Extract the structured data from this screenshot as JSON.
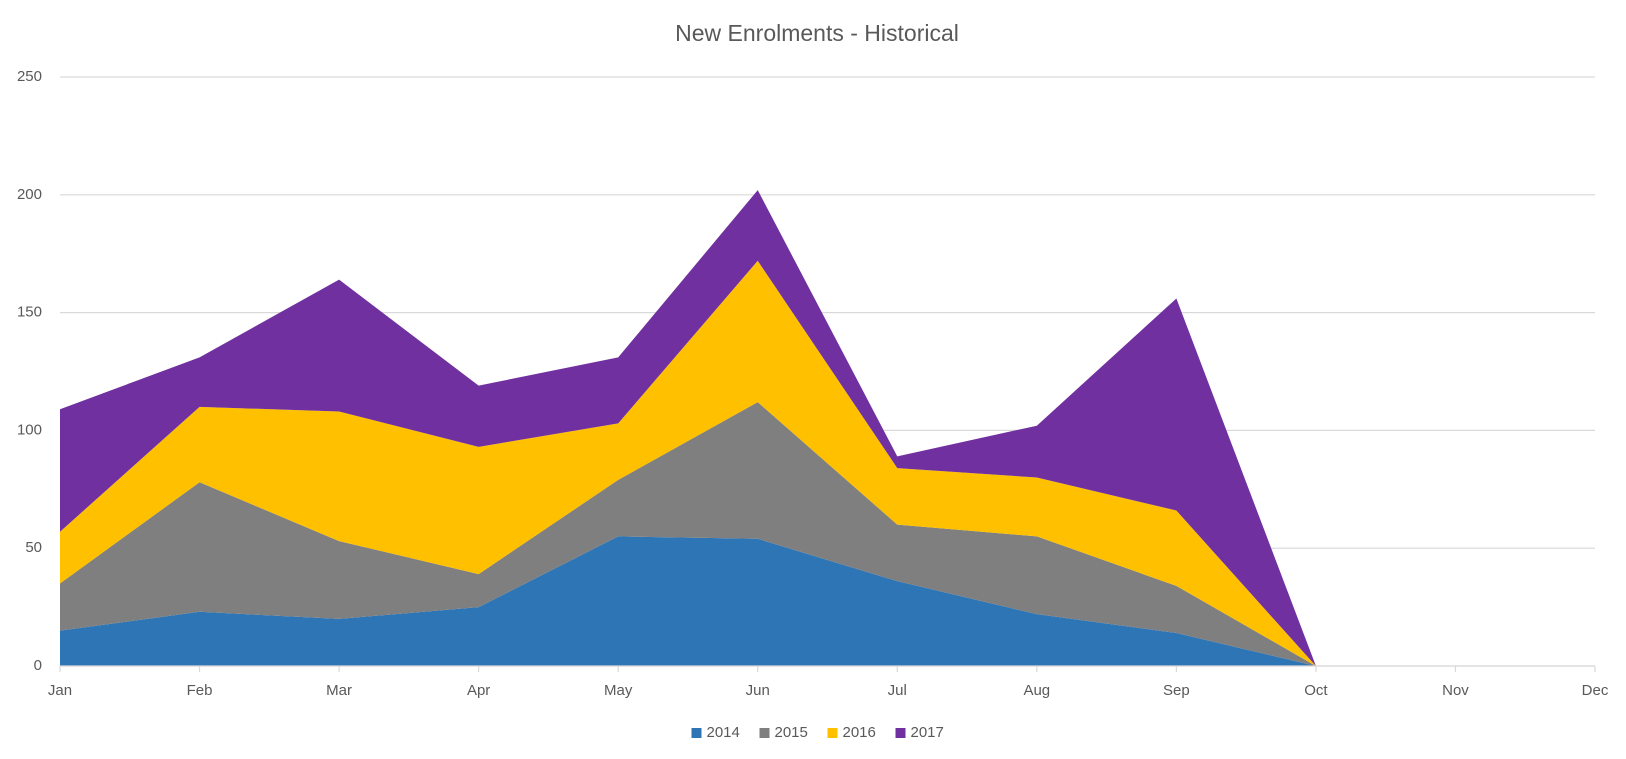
{
  "chart_data": {
    "type": "stacked_area",
    "title": "New Enrolments - Historical",
    "categories": [
      "Jan",
      "Feb",
      "Mar",
      "Apr",
      "May",
      "Jun",
      "Jul",
      "Aug",
      "Sep",
      "Oct",
      "Nov",
      "Dec"
    ],
    "series": [
      {
        "name": "2014",
        "color": "#2e75b6",
        "values": [
          15,
          23,
          20,
          25,
          55,
          54,
          36,
          22,
          14,
          0,
          null,
          null
        ]
      },
      {
        "name": "2015",
        "color": "#7f7f7f",
        "values": [
          20,
          55,
          33,
          14,
          24,
          58,
          24,
          33,
          20,
          0,
          null,
          null
        ]
      },
      {
        "name": "2016",
        "color": "#ffc000",
        "values": [
          22,
          32,
          55,
          54,
          24,
          60,
          24,
          25,
          32,
          0,
          null,
          null
        ]
      },
      {
        "name": "2017",
        "color": "#7030a0",
        "values": [
          52,
          21,
          56,
          26,
          28,
          30,
          5,
          22,
          90,
          0,
          null,
          null
        ]
      }
    ],
    "ylim": [
      0,
      250
    ],
    "yticks": [
      0,
      50,
      100,
      150,
      200,
      250
    ],
    "grid": true,
    "legend": "bottom"
  }
}
